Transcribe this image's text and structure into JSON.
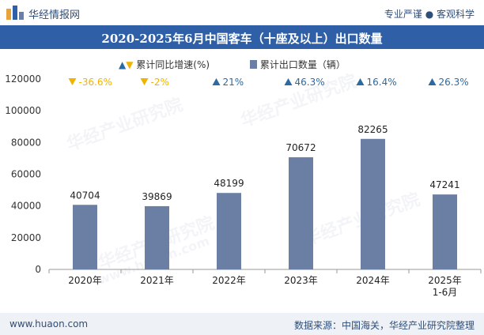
{
  "header": {
    "brand": "华经情报网",
    "slogan": "专业严谨 ● 客观科学",
    "title": "2020-2025年6月中国客车（十座及以上）出口数量"
  },
  "legend": {
    "growth_label": "累计同比增速(%)",
    "volume_label": "累计出口数量（辆）"
  },
  "colors": {
    "bar": "#6b7fa5",
    "up": "#2d6aa3",
    "down": "#f0b400",
    "title_bg": "#2f5fa7"
  },
  "chart_data": {
    "type": "bar",
    "categories": [
      "2020年",
      "2021年",
      "2022年",
      "2023年",
      "2024年",
      "2025年\n1-6月"
    ],
    "values": [
      40704,
      39869,
      48199,
      70672,
      82265,
      47241
    ],
    "growth": [
      "-36.6%",
      "-2%",
      "21%",
      "46.3%",
      "16.4%",
      "26.3%"
    ],
    "growth_direction": [
      "down",
      "down",
      "up",
      "up",
      "up",
      "up"
    ],
    "yticks": [
      "0",
      "20000",
      "40000",
      "60000",
      "80000",
      "100000",
      "120000"
    ],
    "ylim": [
      0,
      120000
    ]
  },
  "footer": {
    "url": "www.huaon.com",
    "source": "数据来源：中国海关，华经产业研究院整理"
  },
  "watermark": {
    "text": "华经产业研究院",
    "url_text": "www.huaon.com"
  }
}
